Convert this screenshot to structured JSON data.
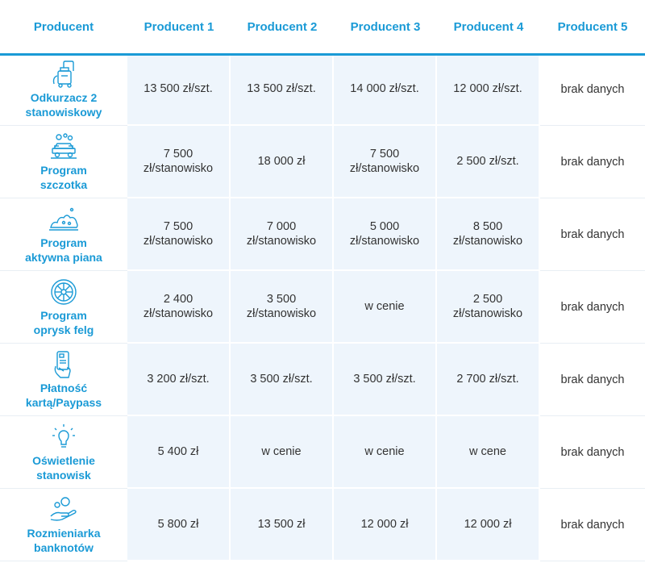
{
  "header": {
    "col0": "Producent",
    "col1": "Producent 1",
    "col2": "Producent 2",
    "col3": "Producent 3",
    "col4": "Producent 4",
    "col5": "Producent 5"
  },
  "rows": [
    {
      "label": "Odkurzacz 2\nstanowiskowy",
      "icon": "vacuum-icon",
      "values": [
        "13 500 zł/szt.",
        "13 500 zł/szt.",
        "14 000 zł/szt.",
        "12 000 zł/szt.",
        "brak danych"
      ]
    },
    {
      "label": "Program\nszczotka",
      "icon": "brush-car-icon",
      "values": [
        "7 500\nzł/stanowisko",
        "18 000 zł",
        "7 500\nzł/stanowisko",
        "2 500 zł/szt.",
        "brak danych"
      ]
    },
    {
      "label": "Program\naktywna piana",
      "icon": "foam-icon",
      "values": [
        "7 500\nzł/stanowisko",
        "7 000\nzł/stanowisko",
        "5 000\nzł/stanowisko",
        "8 500\nzł/stanowisko",
        "brak danych"
      ]
    },
    {
      "label": "Program\noprysk felg",
      "icon": "wheel-rim-icon",
      "values": [
        "2 400\nzł/stanowisko",
        "3 500\nzł/stanowisko",
        "w cenie",
        "2 500\nzł/stanowisko",
        "brak danych"
      ]
    },
    {
      "label": "Płatność\nkartą/Paypass",
      "icon": "card-payment-icon",
      "values": [
        "3 200 zł/szt.",
        "3 500 zł/szt.",
        "3 500 zł/szt.",
        "2 700 zł/szt.",
        "brak danych"
      ]
    },
    {
      "label": "Oświetlenie\nstanowisk",
      "icon": "light-bulb-icon",
      "values": [
        "5 400 zł",
        "w cenie",
        "w cenie",
        "w cene",
        "brak danych"
      ]
    },
    {
      "label": "Rozmieniarka\nbanknotów",
      "icon": "coin-hand-icon",
      "values": [
        "5 800 zł",
        "13 500 zł",
        "12 000 zł",
        "12 000 zł",
        "brak danych"
      ]
    }
  ],
  "colors": {
    "accent": "#1a9ad6",
    "cell_bg": "#eef5fc",
    "text": "#333333"
  }
}
